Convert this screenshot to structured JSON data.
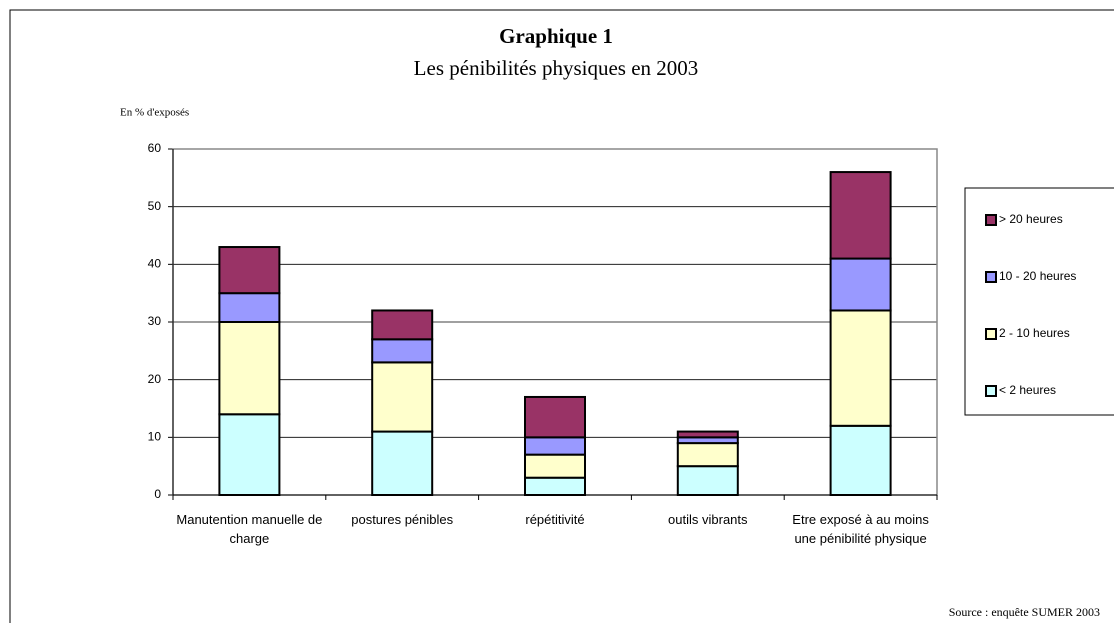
{
  "chart_data": {
    "type": "stacked_bar",
    "title": "Graphique 1",
    "subtitle": "Les pénibilités physiques en 2003",
    "y_label": "En % d'exposés",
    "source": "Source : enquête SUMER 2003",
    "categories": [
      "Manutention manuelle de charge",
      "postures pénibles",
      "répétitivité",
      "outils vibrants",
      "Etre exposé à au moins une pénibilité physique"
    ],
    "series": [
      {
        "name": "< 2 heures",
        "color": "#ccffff",
        "values": [
          14,
          11,
          3,
          5,
          12
        ]
      },
      {
        "name": "2 - 10 heures",
        "color": "#ffffcc",
        "values": [
          16,
          12,
          4,
          4,
          20
        ]
      },
      {
        "name": "10 - 20 heures",
        "color": "#9999ff",
        "values": [
          5,
          4,
          3,
          1,
          9
        ]
      },
      {
        "name": "> 20 heures",
        "color": "#993366",
        "values": [
          8,
          5,
          7,
          1,
          15
        ]
      }
    ],
    "ylim": [
      0,
      60
    ],
    "yticks": [
      0,
      10,
      20,
      30,
      40,
      50,
      60
    ],
    "grid": true
  }
}
